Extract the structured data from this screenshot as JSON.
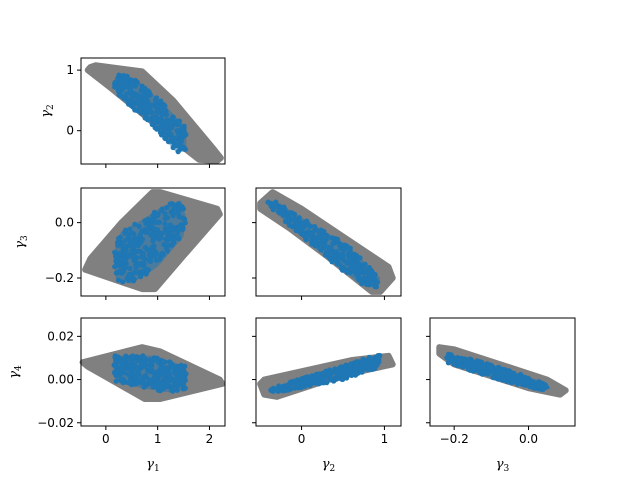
{
  "chart_data": {
    "type": "scatter",
    "layout": "corner-pairplot",
    "series": [
      {
        "name": "",
        "color": "#808080",
        "role": "prior-region"
      },
      {
        "name": "",
        "color": "#1f77b4",
        "role": "posterior-samples"
      }
    ],
    "parameters": [
      {
        "key": "g1",
        "symbol": "γ",
        "index": "1",
        "range": [
          -0.48,
          2.3
        ],
        "ticks": [
          0,
          1,
          2
        ],
        "tick_labels": [
          "0",
          "1",
          "2"
        ]
      },
      {
        "key": "g2",
        "symbol": "γ",
        "index": "2",
        "range": [
          -0.55,
          1.2
        ],
        "ticks": [
          0,
          1
        ],
        "tick_labels": [
          "0",
          "1"
        ]
      },
      {
        "key": "g3",
        "symbol": "γ",
        "index": "3",
        "range": [
          -0.265,
          0.125
        ],
        "ticks": [
          -0.2,
          0.0
        ],
        "tick_labels": [
          "−0.2",
          "0.0"
        ]
      },
      {
        "key": "g4",
        "symbol": "γ",
        "index": "4",
        "range": [
          -0.0215,
          0.0285
        ],
        "ticks": [
          -0.02,
          0.0,
          0.02
        ],
        "tick_labels": [
          "−0.02",
          "0.00",
          "0.02"
        ]
      }
    ],
    "panels": [
      {
        "x": "g1",
        "y": "g2",
        "prior_polygon": [
          [
            -0.3,
            1.05
          ],
          [
            -0.2,
            1.08
          ],
          [
            0.7,
            0.98
          ],
          [
            1.3,
            0.5
          ],
          [
            2.1,
            -0.32
          ],
          [
            2.22,
            -0.45
          ],
          [
            2.15,
            -0.5
          ],
          [
            1.8,
            -0.48
          ],
          [
            1.5,
            -0.28
          ],
          [
            0.1,
            0.7
          ],
          [
            -0.35,
            1.0
          ]
        ],
        "posterior_polygon": [
          [
            0.25,
            0.95
          ],
          [
            0.55,
            0.85
          ],
          [
            1.05,
            0.5
          ],
          [
            1.55,
            0.05
          ],
          [
            1.55,
            -0.35
          ],
          [
            1.35,
            -0.35
          ],
          [
            0.95,
            0.05
          ],
          [
            0.6,
            0.3
          ],
          [
            0.25,
            0.55
          ],
          [
            0.15,
            0.75
          ]
        ]
      },
      {
        "x": "g1",
        "y": "g3",
        "prior_polygon": [
          [
            -0.4,
            -0.17
          ],
          [
            0.7,
            -0.24
          ],
          [
            0.95,
            -0.24
          ],
          [
            1.5,
            -0.12
          ],
          [
            2.2,
            0.03
          ],
          [
            2.15,
            0.05
          ],
          [
            1.05,
            0.11
          ],
          [
            0.9,
            0.11
          ],
          [
            0.3,
            0.0
          ],
          [
            -0.3,
            -0.13
          ]
        ],
        "posterior_polygon": [
          [
            0.15,
            -0.13
          ],
          [
            0.2,
            -0.21
          ],
          [
            0.5,
            -0.22
          ],
          [
            1.0,
            -0.16
          ],
          [
            1.5,
            -0.05
          ],
          [
            1.55,
            0.02
          ],
          [
            1.45,
            0.08
          ],
          [
            1.1,
            0.06
          ],
          [
            0.7,
            0.01
          ],
          [
            0.3,
            -0.03
          ],
          [
            0.2,
            -0.07
          ]
        ]
      },
      {
        "x": "g2",
        "y": "g3",
        "prior_polygon": [
          [
            -0.5,
            0.07
          ],
          [
            -0.35,
            0.11
          ],
          [
            0.0,
            0.05
          ],
          [
            0.5,
            -0.05
          ],
          [
            1.05,
            -0.16
          ],
          [
            1.1,
            -0.2
          ],
          [
            0.95,
            -0.25
          ],
          [
            0.85,
            -0.25
          ],
          [
            0.3,
            -0.12
          ],
          [
            -0.15,
            -0.02
          ],
          [
            -0.5,
            0.05
          ]
        ],
        "posterior_polygon": [
          [
            -0.45,
            0.075
          ],
          [
            -0.3,
            0.075
          ],
          [
            0.1,
            0.0
          ],
          [
            0.55,
            -0.08
          ],
          [
            0.95,
            -0.2
          ],
          [
            0.9,
            -0.235
          ],
          [
            0.7,
            -0.22
          ],
          [
            0.4,
            -0.15
          ],
          [
            0.0,
            -0.05
          ],
          [
            -0.4,
            0.06
          ]
        ]
      },
      {
        "x": "g1",
        "y": "g4",
        "prior_polygon": [
          [
            -0.45,
            0.008
          ],
          [
            0.7,
            0.015
          ],
          [
            1.05,
            0.013
          ],
          [
            2.2,
            0.0
          ],
          [
            2.25,
            -0.002
          ],
          [
            1.05,
            -0.009
          ],
          [
            0.75,
            -0.009
          ],
          [
            -0.35,
            0.006
          ]
        ],
        "posterior_polygon": [
          [
            0.15,
            0.011
          ],
          [
            0.95,
            0.011
          ],
          [
            1.55,
            0.006
          ],
          [
            1.55,
            -0.005
          ],
          [
            1.25,
            -0.006
          ],
          [
            0.7,
            -0.004
          ],
          [
            0.2,
            -0.001
          ],
          [
            0.15,
            0.004
          ]
        ]
      },
      {
        "x": "g2",
        "y": "g4",
        "prior_polygon": [
          [
            -0.5,
            -0.002
          ],
          [
            -0.45,
            0.0
          ],
          [
            0.6,
            0.009
          ],
          [
            1.05,
            0.011
          ],
          [
            1.1,
            0.007
          ],
          [
            0.5,
            0.002
          ],
          [
            -0.3,
            -0.008
          ],
          [
            -0.45,
            -0.007
          ]
        ],
        "posterior_polygon": [
          [
            -0.38,
            -0.004
          ],
          [
            0.3,
            0.004
          ],
          [
            0.95,
            0.012
          ],
          [
            0.95,
            0.006
          ],
          [
            0.5,
            0.0
          ],
          [
            -0.3,
            -0.006
          ],
          [
            -0.38,
            -0.005
          ]
        ]
      },
      {
        "x": "g3",
        "y": "g4",
        "prior_polygon": [
          [
            -0.24,
            0.015
          ],
          [
            -0.2,
            0.014
          ],
          [
            0.05,
            0.0
          ],
          [
            0.1,
            -0.005
          ],
          [
            0.085,
            -0.007
          ],
          [
            0.0,
            -0.004
          ],
          [
            -0.2,
            0.007
          ],
          [
            -0.24,
            0.012
          ]
        ],
        "posterior_polygon": [
          [
            -0.22,
            0.012
          ],
          [
            -0.12,
            0.008
          ],
          [
            0.02,
            0.0
          ],
          [
            0.06,
            -0.004
          ],
          [
            0.03,
            -0.005
          ],
          [
            -0.1,
            0.001
          ],
          [
            -0.22,
            0.008
          ]
        ]
      }
    ]
  }
}
